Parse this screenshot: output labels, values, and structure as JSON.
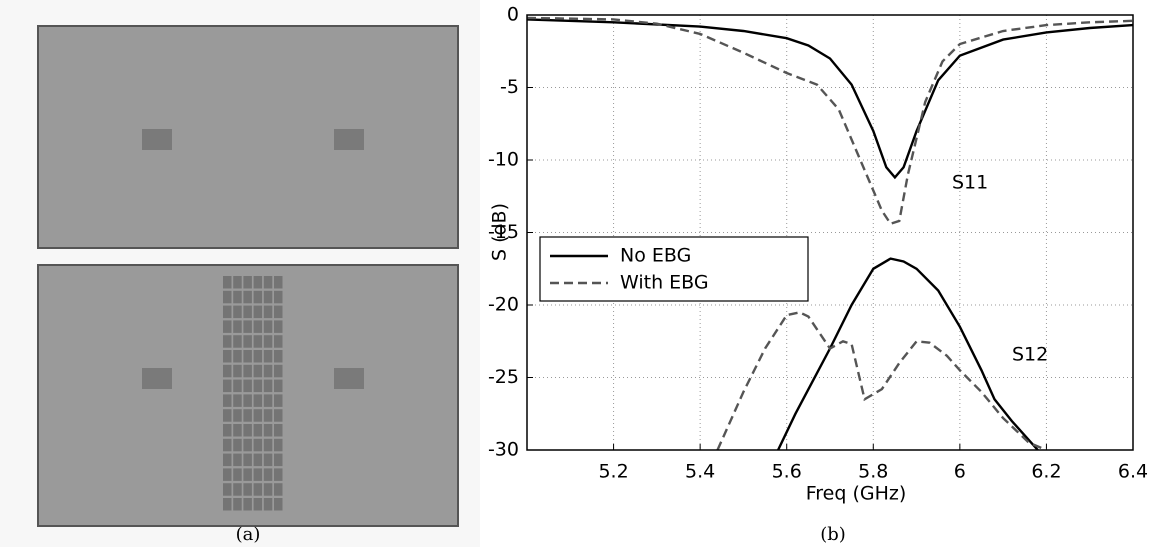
{
  "captions": [
    "(a)",
    "(b)"
  ],
  "chart_data": {
    "type": "line",
    "xlabel": "Freq (GHz)",
    "ylabel": "S (dB)",
    "xlim": [
      5.0,
      6.4
    ],
    "xticks": [
      5.2,
      5.4,
      5.6,
      5.8,
      6,
      6.2,
      6.4
    ],
    "ylim": [
      -30,
      0
    ],
    "yticks": [
      -30,
      -25,
      -20,
      -15,
      -10,
      -5,
      0
    ],
    "grid": true,
    "legend": "left",
    "annotations": [
      "S11",
      "S12"
    ],
    "series": [
      {
        "name": "No EBG",
        "color": "#000000",
        "dashed": false,
        "curves": [
          {
            "x": [
              5.0,
              5.2,
              5.4,
              5.5,
              5.6,
              5.65,
              5.7,
              5.75,
              5.8,
              5.83,
              5.85,
              5.87,
              5.9,
              5.95,
              6.0,
              6.1,
              6.2,
              6.3,
              6.4
            ],
            "values": [
              -0.3,
              -0.5,
              -0.8,
              -1.1,
              -1.6,
              -2.1,
              -3,
              -4.8,
              -8,
              -10.5,
              -11.2,
              -10.5,
              -8,
              -4.5,
              -2.8,
              -1.7,
              -1.2,
              -0.9,
              -0.7
            ]
          },
          {
            "x": [
              5.58,
              5.62,
              5.7,
              5.75,
              5.8,
              5.84,
              5.87,
              5.9,
              5.95,
              6.0,
              6.05,
              6.08,
              6.12,
              6.18
            ],
            "values": [
              -30,
              -27.5,
              -23,
              -20,
              -17.5,
              -16.8,
              -17,
              -17.5,
              -19,
              -21.5,
              -24.5,
              -26.5,
              -28,
              -30
            ]
          }
        ]
      },
      {
        "name": "With EBG",
        "color": "#555555",
        "dashed": true,
        "curves": [
          {
            "x": [
              5.0,
              5.2,
              5.3,
              5.4,
              5.5,
              5.6,
              5.67,
              5.72,
              5.77,
              5.82,
              5.84,
              5.86,
              5.88,
              5.92,
              5.96,
              6.0,
              6.1,
              6.2,
              6.3,
              6.4
            ],
            "values": [
              -0.2,
              -0.3,
              -0.6,
              -1.3,
              -2.6,
              -4,
              -4.8,
              -6.5,
              -10,
              -13.5,
              -14.4,
              -14.2,
              -11,
              -6,
              -3.2,
              -2.0,
              -1.1,
              -0.7,
              -0.5,
              -0.4
            ]
          },
          {
            "x": [
              5.44,
              5.5,
              5.55,
              5.6,
              5.63,
              5.65,
              5.7,
              5.73,
              5.75,
              5.78,
              5.82,
              5.86,
              5.9,
              5.93,
              5.97,
              6.0,
              6.05,
              6.1,
              6.16,
              6.2
            ],
            "values": [
              -30,
              -26,
              -23,
              -20.7,
              -20.5,
              -20.8,
              -23,
              -22.5,
              -22.7,
              -26.5,
              -25.8,
              -24,
              -22.5,
              -22.6,
              -23.5,
              -24.5,
              -26,
              -27.8,
              -29.5,
              -30
            ]
          }
        ]
      }
    ]
  }
}
